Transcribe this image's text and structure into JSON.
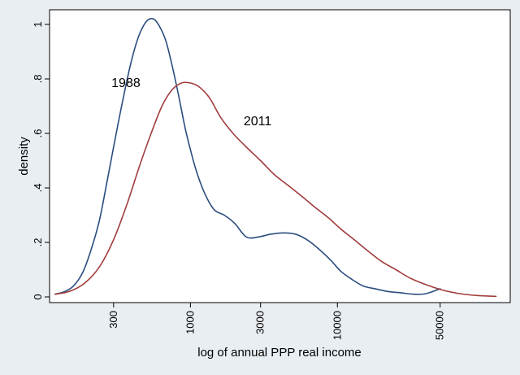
{
  "chart_data": {
    "type": "line",
    "title": "",
    "xlabel": "log of annual PPP real income",
    "ylabel": "density",
    "x_scale": "log",
    "xlim": [
      110,
      150000
    ],
    "ylim": [
      0,
      1.05
    ],
    "x_ticks": [
      {
        "value": 300,
        "label": "300"
      },
      {
        "value": 1000,
        "label": "1000"
      },
      {
        "value": 3000,
        "label": "3000"
      },
      {
        "value": 10000,
        "label": "10000"
      },
      {
        "value": 50000,
        "label": "50000"
      }
    ],
    "y_ticks": [
      {
        "value": 0,
        "label": "0"
      },
      {
        "value": 0.2,
        "label": ".2"
      },
      {
        "value": 0.4,
        "label": ".4"
      },
      {
        "value": 0.6,
        "label": ".6"
      },
      {
        "value": 0.8,
        "label": ".8"
      },
      {
        "value": 1,
        "label": "1"
      }
    ],
    "grid": false,
    "legend": "none",
    "series": [
      {
        "name": "1988",
        "color": "#2b4d7e",
        "x": [
          120,
          140,
          160,
          185,
          210,
          240,
          270,
          300,
          340,
          390,
          440,
          500,
          560,
          620,
          680,
          750,
          830,
          920,
          1000,
          1100,
          1250,
          1450,
          1700,
          2000,
          2400,
          2900,
          3500,
          4300,
          5200,
          6200,
          7500,
          9000,
          10500,
          12500,
          15000,
          18000,
          22000,
          27000,
          33000,
          40000,
          50000
        ],
        "y": [
          0.01,
          0.02,
          0.04,
          0.09,
          0.17,
          0.28,
          0.42,
          0.55,
          0.7,
          0.85,
          0.95,
          1.01,
          1.02,
          0.99,
          0.94,
          0.85,
          0.74,
          0.62,
          0.54,
          0.46,
          0.38,
          0.32,
          0.3,
          0.27,
          0.22,
          0.22,
          0.23,
          0.235,
          0.23,
          0.21,
          0.175,
          0.135,
          0.095,
          0.065,
          0.04,
          0.03,
          0.02,
          0.015,
          0.01,
          0.012,
          0.03
        ]
      },
      {
        "name": "2011",
        "color": "#a13c3c",
        "x": [
          120,
          150,
          190,
          240,
          300,
          370,
          450,
          540,
          640,
          750,
          870,
          1000,
          1150,
          1350,
          1600,
          1950,
          2400,
          3000,
          3700,
          4600,
          5700,
          7000,
          8700,
          10500,
          13000,
          16000,
          20000,
          25000,
          31000,
          40000,
          52000,
          68000,
          90000,
          120000
        ],
        "y": [
          0.01,
          0.02,
          0.05,
          0.11,
          0.21,
          0.34,
          0.48,
          0.6,
          0.7,
          0.76,
          0.785,
          0.785,
          0.77,
          0.73,
          0.66,
          0.6,
          0.55,
          0.5,
          0.45,
          0.41,
          0.37,
          0.33,
          0.29,
          0.25,
          0.21,
          0.17,
          0.13,
          0.1,
          0.07,
          0.045,
          0.025,
          0.012,
          0.005,
          0.002
        ]
      }
    ],
    "annotations": [
      {
        "text": "1988",
        "x": 290,
        "y": 0.77
      },
      {
        "text": "2011",
        "x": 2300,
        "y": 0.63
      }
    ]
  }
}
